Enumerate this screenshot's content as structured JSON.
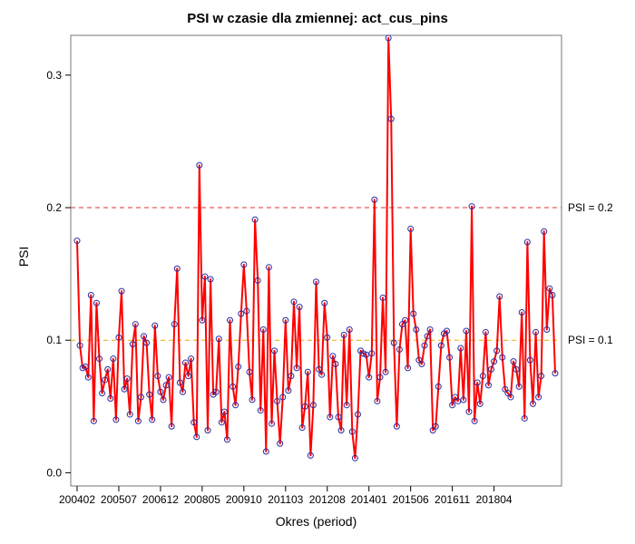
{
  "chart_data": {
    "type": "line",
    "title": "PSI w czasie dla zmiennej: act_cus_pins",
    "xlabel": "Okres (period)",
    "ylabel": "PSI",
    "ylim": [
      -0.01,
      0.33
    ],
    "yticks": [
      0.0,
      0.1,
      0.2,
      0.3
    ],
    "ytick_labels": [
      "0.0",
      "0.1",
      "0.2",
      "0.3"
    ],
    "xticks": [
      "200402",
      "200507",
      "200612",
      "200805",
      "200910",
      "201103",
      "201208",
      "201401",
      "201506",
      "201611",
      "201804"
    ],
    "xtick_indices": [
      0,
      15,
      30,
      45,
      60,
      75,
      90,
      105,
      120,
      135,
      150
    ],
    "reference_lines": [
      {
        "y": 0.2,
        "label": "PSI = 0.2",
        "color": "#e0312d",
        "style": "dashed"
      },
      {
        "y": 0.1,
        "label": "PSI = 0.1",
        "color": "#f2a900",
        "style": "dashed"
      }
    ],
    "series": [
      {
        "line_color": "#ff0000",
        "marker_color": "#2a2aa0",
        "values": [
          0.175,
          0.096,
          0.079,
          0.08,
          0.072,
          0.134,
          0.039,
          0.128,
          0.086,
          0.06,
          0.07,
          0.078,
          0.056,
          0.086,
          0.04,
          0.102,
          0.137,
          0.063,
          0.071,
          0.044,
          0.097,
          0.112,
          0.039,
          0.057,
          0.103,
          0.098,
          0.059,
          0.04,
          0.111,
          0.073,
          0.061,
          0.055,
          0.066,
          0.072,
          0.035,
          0.112,
          0.154,
          0.068,
          0.061,
          0.083,
          0.073,
          0.086,
          0.038,
          0.027,
          0.232,
          0.115,
          0.148,
          0.032,
          0.146,
          0.059,
          0.061,
          0.101,
          0.038,
          0.046,
          0.025,
          0.115,
          0.065,
          0.051,
          0.08,
          0.12,
          0.157,
          0.122,
          0.076,
          0.055,
          0.191,
          0.145,
          0.047,
          0.108,
          0.016,
          0.155,
          0.037,
          0.092,
          0.054,
          0.022,
          0.057,
          0.115,
          0.062,
          0.073,
          0.129,
          0.079,
          0.125,
          0.034,
          0.05,
          0.076,
          0.013,
          0.051,
          0.144,
          0.078,
          0.074,
          0.128,
          0.102,
          0.042,
          0.088,
          0.082,
          0.042,
          0.032,
          0.104,
          0.051,
          0.108,
          0.031,
          0.011,
          0.044,
          0.092,
          0.09,
          0.089,
          0.072,
          0.09,
          0.206,
          0.054,
          0.072,
          0.132,
          0.076,
          0.328,
          0.267,
          0.098,
          0.035,
          0.093,
          0.112,
          0.115,
          0.079,
          0.184,
          0.12,
          0.108,
          0.085,
          0.082,
          0.096,
          0.103,
          0.108,
          0.032,
          0.035,
          0.065,
          0.096,
          0.105,
          0.107,
          0.087,
          0.051,
          0.057,
          0.054,
          0.094,
          0.055,
          0.107,
          0.046,
          0.201,
          0.039,
          0.068,
          0.052,
          0.073,
          0.106,
          0.066,
          0.078,
          0.084,
          0.092,
          0.133,
          0.087,
          0.063,
          0.06,
          0.057,
          0.084,
          0.078,
          0.065,
          0.121,
          0.041,
          0.174,
          0.085,
          0.052,
          0.106,
          0.057,
          0.073,
          0.182,
          0.108,
          0.139,
          0.134,
          0.075
        ]
      }
    ]
  }
}
